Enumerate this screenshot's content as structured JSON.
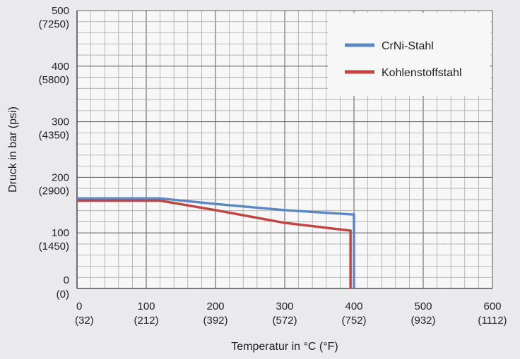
{
  "chart_data": {
    "type": "line",
    "title": "",
    "xlabel": "Temperatur in °C (°F)",
    "ylabel": "Druck in bar (psi)",
    "xlim": [
      0,
      600
    ],
    "ylim": [
      0,
      500
    ],
    "grid": true,
    "legend_position": "top-right",
    "x_ticks": [
      {
        "value": 0,
        "label": "0",
        "sub": "(32)"
      },
      {
        "value": 100,
        "label": "100",
        "sub": "(212)"
      },
      {
        "value": 200,
        "label": "200",
        "sub": "(392)"
      },
      {
        "value": 300,
        "label": "300",
        "sub": "(572)"
      },
      {
        "value": 400,
        "label": "400",
        "sub": "(752)"
      },
      {
        "value": 500,
        "label": "500",
        "sub": "(932)"
      },
      {
        "value": 600,
        "label": "600",
        "sub": "(1112)"
      }
    ],
    "y_ticks": [
      {
        "value": 0,
        "label": "0",
        "sub": "(0)"
      },
      {
        "value": 100,
        "label": "100",
        "sub": "(1450)"
      },
      {
        "value": 200,
        "label": "200",
        "sub": "(2900)"
      },
      {
        "value": 300,
        "label": "300",
        "sub": "(4350)"
      },
      {
        "value": 400,
        "label": "400",
        "sub": "(5800)"
      },
      {
        "value": 500,
        "label": "500",
        "sub": "(7250)"
      }
    ],
    "series": [
      {
        "name": "CrNi-Stahl",
        "color": "#5b86c2",
        "points": [
          [
            0,
            162
          ],
          [
            120,
            162
          ],
          [
            200,
            152
          ],
          [
            300,
            141
          ],
          [
            400,
            133
          ],
          [
            400,
            0
          ]
        ]
      },
      {
        "name": "Kohlenstoffstahl",
        "color": "#c0443f",
        "points": [
          [
            0,
            158
          ],
          [
            120,
            158
          ],
          [
            200,
            141
          ],
          [
            300,
            118
          ],
          [
            395,
            104
          ],
          [
            395,
            0
          ]
        ]
      }
    ]
  }
}
